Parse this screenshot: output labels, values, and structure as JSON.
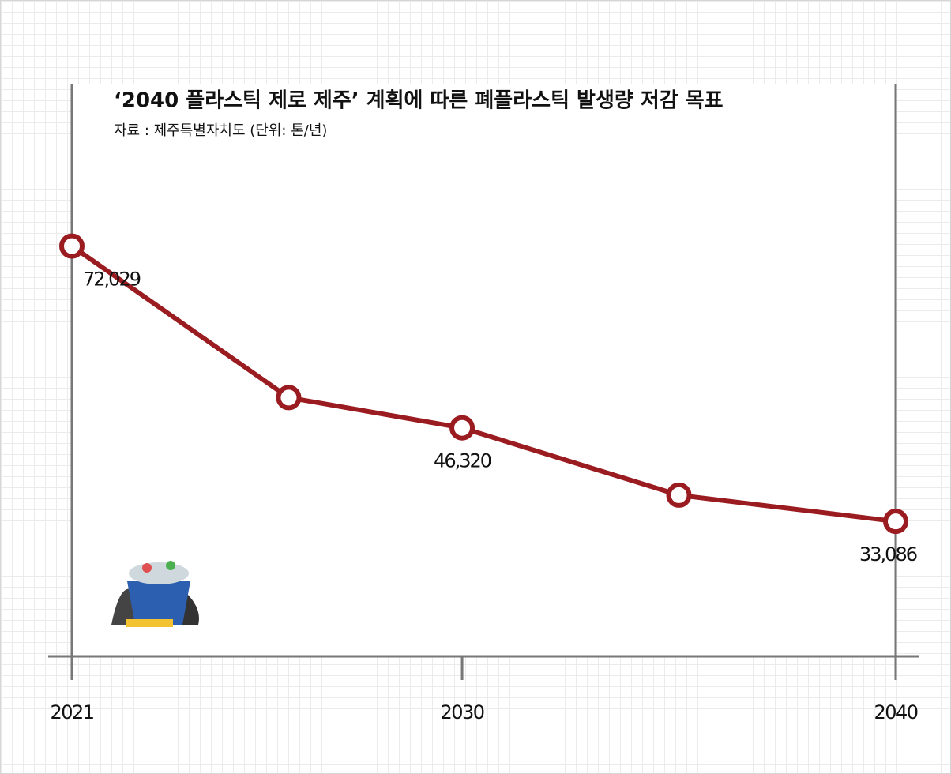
{
  "chart_data": {
    "type": "line",
    "title": "‘2040 플라스틱 제로 제주’ 계획에 따른 폐플라스틱 발생량 저감 목표",
    "subtitle": "자료 : 제주특별자치도 (단위: 톤/년)",
    "x": [
      2021,
      2026,
      2030,
      2035,
      2040
    ],
    "series": [
      {
        "name": "폐플라스틱 발생량",
        "color": "#9b1c20",
        "values": [
          72029,
          50600,
          46320,
          36800,
          33086
        ],
        "value_labels": [
          "72,029",
          null,
          "46,320",
          null,
          "33,086"
        ]
      }
    ],
    "xlim": [
      2021,
      2040
    ],
    "xticks": [
      2021,
      2030,
      2040
    ],
    "ylim": [
      14000,
      95000
    ]
  }
}
